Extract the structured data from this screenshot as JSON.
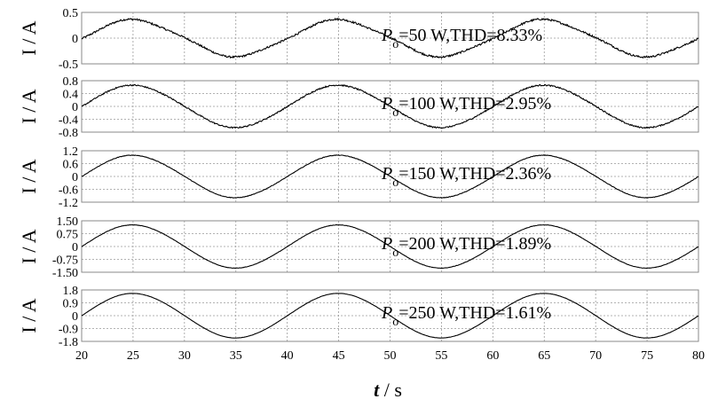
{
  "chart_data": {
    "type": "line",
    "x_axis": {
      "label_var": "t",
      "label_unit": " / s",
      "range": [
        20,
        80
      ],
      "ticks": [
        20,
        25,
        30,
        35,
        40,
        45,
        50,
        55,
        60,
        65,
        70,
        75,
        80
      ]
    },
    "signal": {
      "period": 20,
      "peak_at": 25
    },
    "panels": [
      {
        "ylabel": "I / A",
        "ylim": [
          -0.5,
          0.5
        ],
        "ticks": [
          0.5,
          0,
          -0.5
        ],
        "tick_labels": [
          "0.5",
          "0",
          "-0.5"
        ],
        "amplitude": 0.35,
        "noise": 0.018,
        "distortion": 0.06,
        "annotation": {
          "p": "P",
          "sub": "o",
          "text": "=50 W,THD=8.33%"
        }
      },
      {
        "ylabel": "I / A",
        "ylim": [
          -0.8,
          0.8
        ],
        "ticks": [
          0.8,
          0.4,
          0,
          -0.4,
          -0.8
        ],
        "tick_labels": [
          "0.8",
          "0.4",
          "0",
          "-0.4",
          "-0.8"
        ],
        "amplitude": 0.65,
        "noise": 0.02,
        "distortion": 0.02,
        "annotation": {
          "p": "P",
          "sub": "o",
          "text": "=100 W,THD=2.95%"
        }
      },
      {
        "ylabel": "I / A",
        "ylim": [
          -1.2,
          1.2
        ],
        "ticks": [
          1.2,
          0.6,
          0,
          -0.6,
          -1.2
        ],
        "tick_labels": [
          "1.2",
          "0.6",
          "0",
          "-0.6",
          "-1.2"
        ],
        "amplitude": 0.98,
        "noise": 0.012,
        "distortion": 0.015,
        "annotation": {
          "p": "P",
          "sub": "o",
          "text": "=150 W,THD=2.36%"
        }
      },
      {
        "ylabel": "I / A",
        "ylim": [
          -1.5,
          1.5
        ],
        "ticks": [
          1.5,
          0.75,
          0,
          -0.75,
          -1.5
        ],
        "tick_labels": [
          "1.50",
          "0.75",
          "0",
          "-0.75",
          "-1.50"
        ],
        "amplitude": 1.25,
        "noise": 0.01,
        "distortion": 0.01,
        "annotation": {
          "p": "P",
          "sub": "o",
          "text": "=200 W,THD=1.89%"
        }
      },
      {
        "ylabel": "I / A",
        "ylim": [
          -1.8,
          1.8
        ],
        "ticks": [
          1.8,
          0.9,
          0,
          -0.9,
          -1.8
        ],
        "tick_labels": [
          "1.8",
          "0.9",
          "0",
          "-0.9",
          "-1.8"
        ],
        "amplitude": 1.55,
        "noise": 0.008,
        "distortion": 0.008,
        "annotation": {
          "p": "P",
          "sub": "o",
          "text": "=250 W,THD=1.61%"
        }
      }
    ]
  }
}
